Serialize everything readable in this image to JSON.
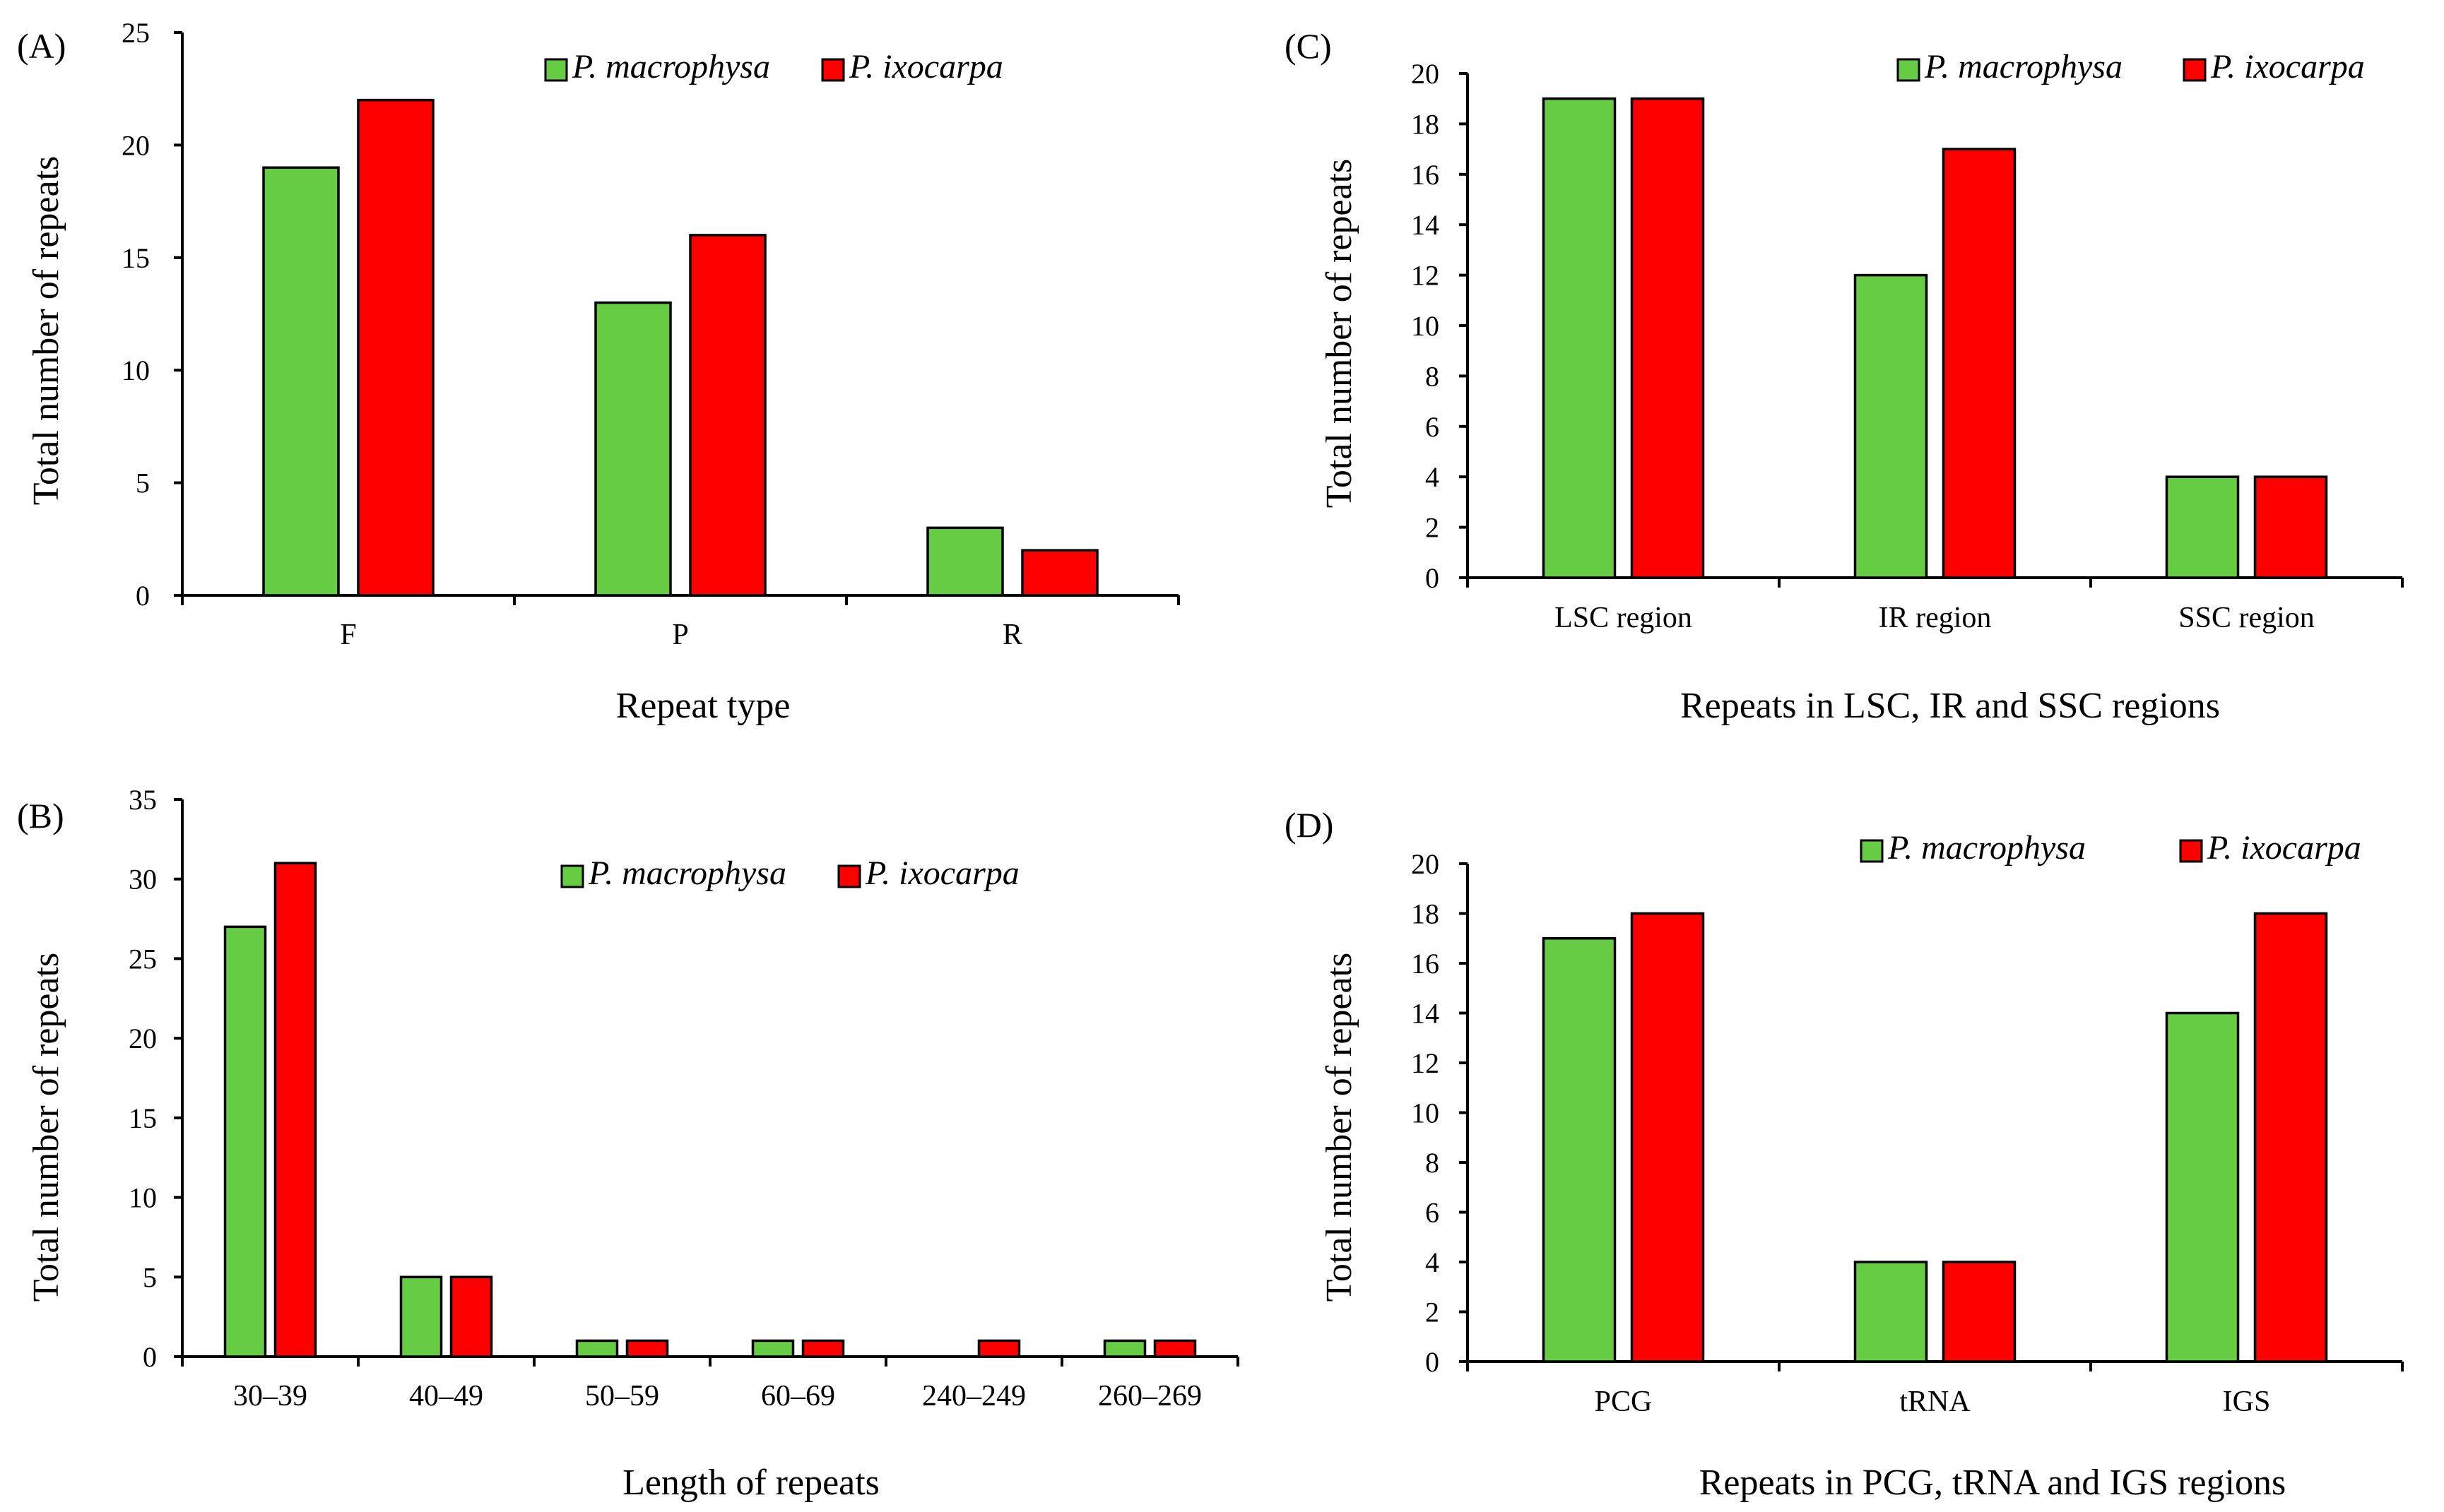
{
  "colors": {
    "macrophysa": "#66CC44",
    "ixocarpa": "#FF0000"
  },
  "chart_data": [
    {
      "id": "A",
      "panel_label": "(A)",
      "type": "bar",
      "categories": [
        "F",
        "P",
        "R"
      ],
      "series": [
        {
          "name": "P. macrophysa",
          "values": [
            19,
            13,
            3
          ]
        },
        {
          "name": "P. ixocarpa",
          "values": [
            22,
            16,
            2
          ]
        }
      ],
      "xlabel": "Repeat type",
      "ylabel": "Total number of repeats",
      "ylim": [
        0,
        25
      ],
      "yticks": [
        0,
        5,
        10,
        15,
        20,
        25
      ],
      "legend_placement": "top-center",
      "grid": false
    },
    {
      "id": "B",
      "panel_label": "(B)",
      "type": "bar",
      "categories": [
        "30–39",
        "40–49",
        "50–59",
        "60–69",
        "240–249",
        "260–269"
      ],
      "series": [
        {
          "name": "P. macrophysa",
          "values": [
            27,
            5,
            1,
            1,
            0,
            1
          ]
        },
        {
          "name": "P. ixocarpa",
          "values": [
            31,
            5,
            1,
            1,
            1,
            1
          ]
        }
      ],
      "xlabel": "Length of repeats",
      "ylabel": "Total number of repeats",
      "ylim": [
        0,
        35
      ],
      "yticks": [
        0,
        5,
        10,
        15,
        20,
        25,
        30,
        35
      ],
      "legend_placement": "top-center",
      "grid": false
    },
    {
      "id": "C",
      "panel_label": "(C)",
      "type": "bar",
      "categories": [
        "LSC region",
        "IR region",
        "SSC region"
      ],
      "series": [
        {
          "name": "P. macrophysa",
          "values": [
            19,
            12,
            4
          ]
        },
        {
          "name": "P. ixocarpa",
          "values": [
            19,
            17,
            4
          ]
        }
      ],
      "xlabel": "Repeats in LSC, IR and SSC regions",
      "ylabel": "Total number of repeats",
      "ylim": [
        0,
        20
      ],
      "yticks": [
        0,
        2,
        4,
        6,
        8,
        10,
        12,
        14,
        16,
        18,
        20
      ],
      "legend_placement": "top-right",
      "grid": false
    },
    {
      "id": "D",
      "panel_label": "(D)",
      "type": "bar",
      "categories": [
        "PCG",
        "tRNA",
        "IGS"
      ],
      "series": [
        {
          "name": "P. macrophysa",
          "values": [
            17,
            4,
            14
          ]
        },
        {
          "name": "P. ixocarpa",
          "values": [
            18,
            4,
            18
          ]
        }
      ],
      "xlabel": "Repeats in PCG, tRNA and IGS regions",
      "ylabel": "Total number of repeats",
      "ylim": [
        0,
        20
      ],
      "yticks": [
        0,
        2,
        4,
        6,
        8,
        10,
        12,
        14,
        16,
        18,
        20
      ],
      "legend_placement": "top-right",
      "grid": false
    }
  ]
}
